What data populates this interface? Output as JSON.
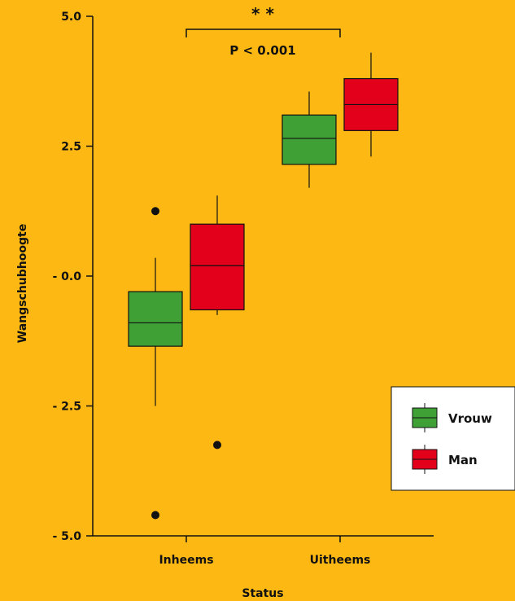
{
  "chart_data": {
    "type": "box",
    "xlabel": "Status",
    "ylabel": "Wangschubhoogte",
    "ylim": [
      -5.0,
      5.0
    ],
    "yticks": [
      5.0,
      2.5,
      0.0,
      -2.5,
      -5.0
    ],
    "ytick_labels": [
      "5.0",
      "2.5",
      "- 0.0",
      "- 2.5",
      "- 5.0"
    ],
    "categories": [
      "Inheems",
      "Uitheems"
    ],
    "series": [
      {
        "name": "Vrouw",
        "color": "#3EA035",
        "boxes": [
          {
            "category": "Inheems",
            "whisker_low": -2.5,
            "q1": -1.35,
            "median": -0.9,
            "q3": -0.3,
            "whisker_high": 0.35,
            "outliers": [
              1.25,
              -4.6
            ]
          },
          {
            "category": "Uitheems",
            "whisker_low": 1.7,
            "q1": 2.15,
            "median": 2.65,
            "q3": 3.1,
            "whisker_high": 3.55,
            "outliers": []
          }
        ]
      },
      {
        "name": "Man",
        "color": "#E3001B",
        "boxes": [
          {
            "category": "Inheems",
            "whisker_low": -0.75,
            "q1": -0.65,
            "median": 0.2,
            "q3": 1.0,
            "whisker_high": 1.55,
            "outliers": [
              -3.25
            ]
          },
          {
            "category": "Uitheems",
            "whisker_low": 2.3,
            "q1": 2.8,
            "median": 3.3,
            "q3": 3.8,
            "whisker_high": 4.3,
            "outliers": []
          }
        ]
      }
    ],
    "annotation": {
      "stars": "* *",
      "text": "P < 0.001"
    },
    "legend": {
      "position": "bottom-right",
      "entries": [
        "Vrouw",
        "Man"
      ]
    }
  }
}
